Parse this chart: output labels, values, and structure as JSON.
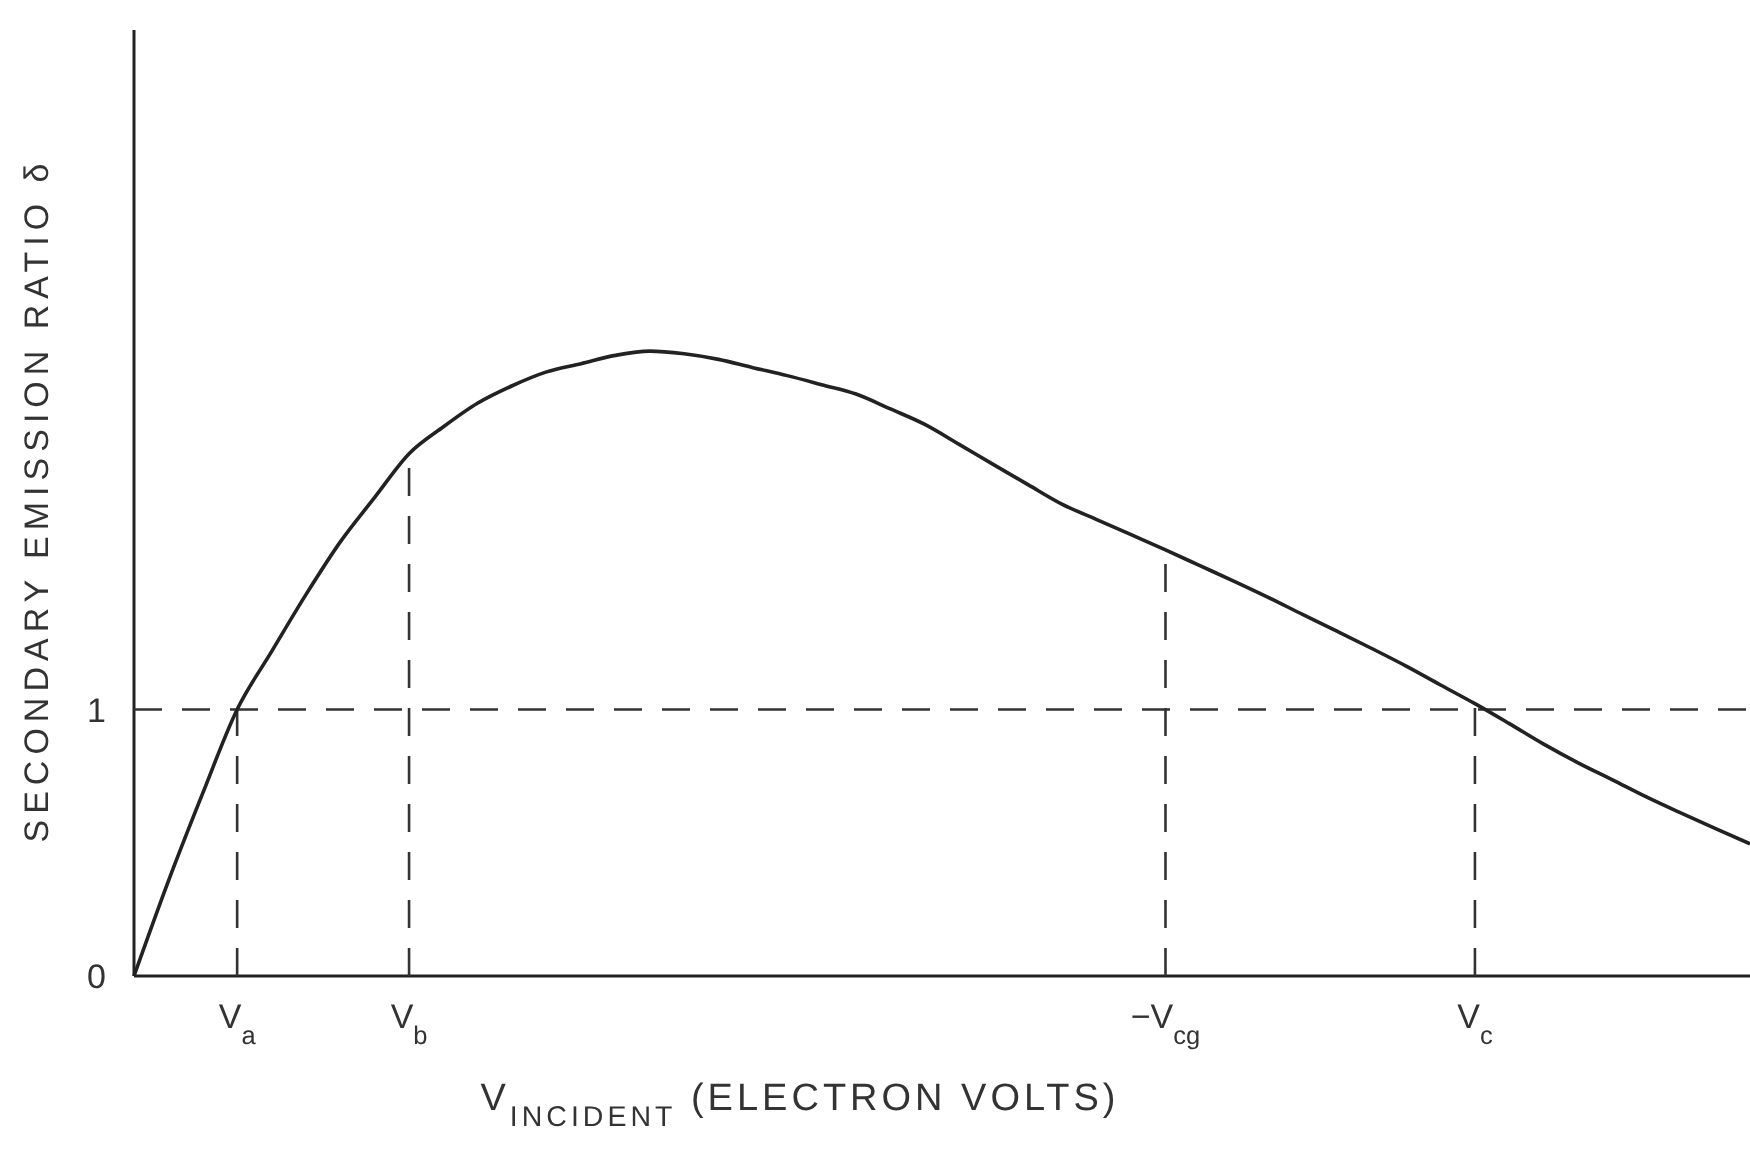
{
  "chart_data": {
    "type": "line",
    "xlabel": "V$_{INCIDENT}$ (ELECTRON VOLTS)",
    "ylabel": "SECONDARY EMISSION RATIO δ",
    "ylim": [
      0,
      3.55
    ],
    "yticks": [
      0,
      1
    ],
    "categories": [
      null,
      null,
      null,
      "V$_{a}$",
      null,
      null,
      null,
      null,
      "V$_{b}$",
      null,
      null,
      null,
      null,
      null,
      null,
      null,
      null,
      null,
      null,
      null,
      null,
      null,
      null,
      null,
      null,
      null,
      null,
      null,
      null,
      null,
      "−V$_{cg}$",
      null,
      null,
      null,
      null,
      null,
      null,
      null,
      null,
      "V$_{c}$",
      null,
      null,
      null,
      null,
      null,
      null,
      null,
      null
    ],
    "series": [
      {
        "color": "#222222",
        "values": [
          0,
          0.356,
          0.686,
          1.0,
          1.217,
          1.431,
          1.629,
          1.796,
          1.96,
          2.061,
          2.15,
          2.215,
          2.267,
          2.298,
          2.329,
          2.345,
          2.335,
          2.314,
          2.283,
          2.253,
          2.219,
          2.184,
          2.128,
          2.07,
          1.995,
          1.919,
          1.844,
          1.77,
          1.713,
          1.656,
          1.599,
          1.54,
          1.481,
          1.42,
          1.356,
          1.293,
          1.229,
          1.163,
          1.092,
          1.022,
          0.947,
          0.87,
          0.8,
          0.736,
          0.671,
          0.611,
          0.553,
          0.496
        ]
      }
    ],
    "ref_lines": [
      {
        "axis": "y",
        "value": 1,
        "line_style": "dashed"
      },
      {
        "axis": "x",
        "value": "V$_{a}$",
        "line_style": "dashed"
      },
      {
        "axis": "x",
        "value": "V$_{b}$",
        "line_style": "dashed"
      },
      {
        "axis": "x",
        "value": "−V$_{cg}$",
        "line_style": "dashed"
      },
      {
        "axis": "x",
        "value": "V$_{c}$",
        "line_style": "dashed"
      }
    ],
    "grid": false,
    "marker": "none",
    "line_style": "solid"
  }
}
